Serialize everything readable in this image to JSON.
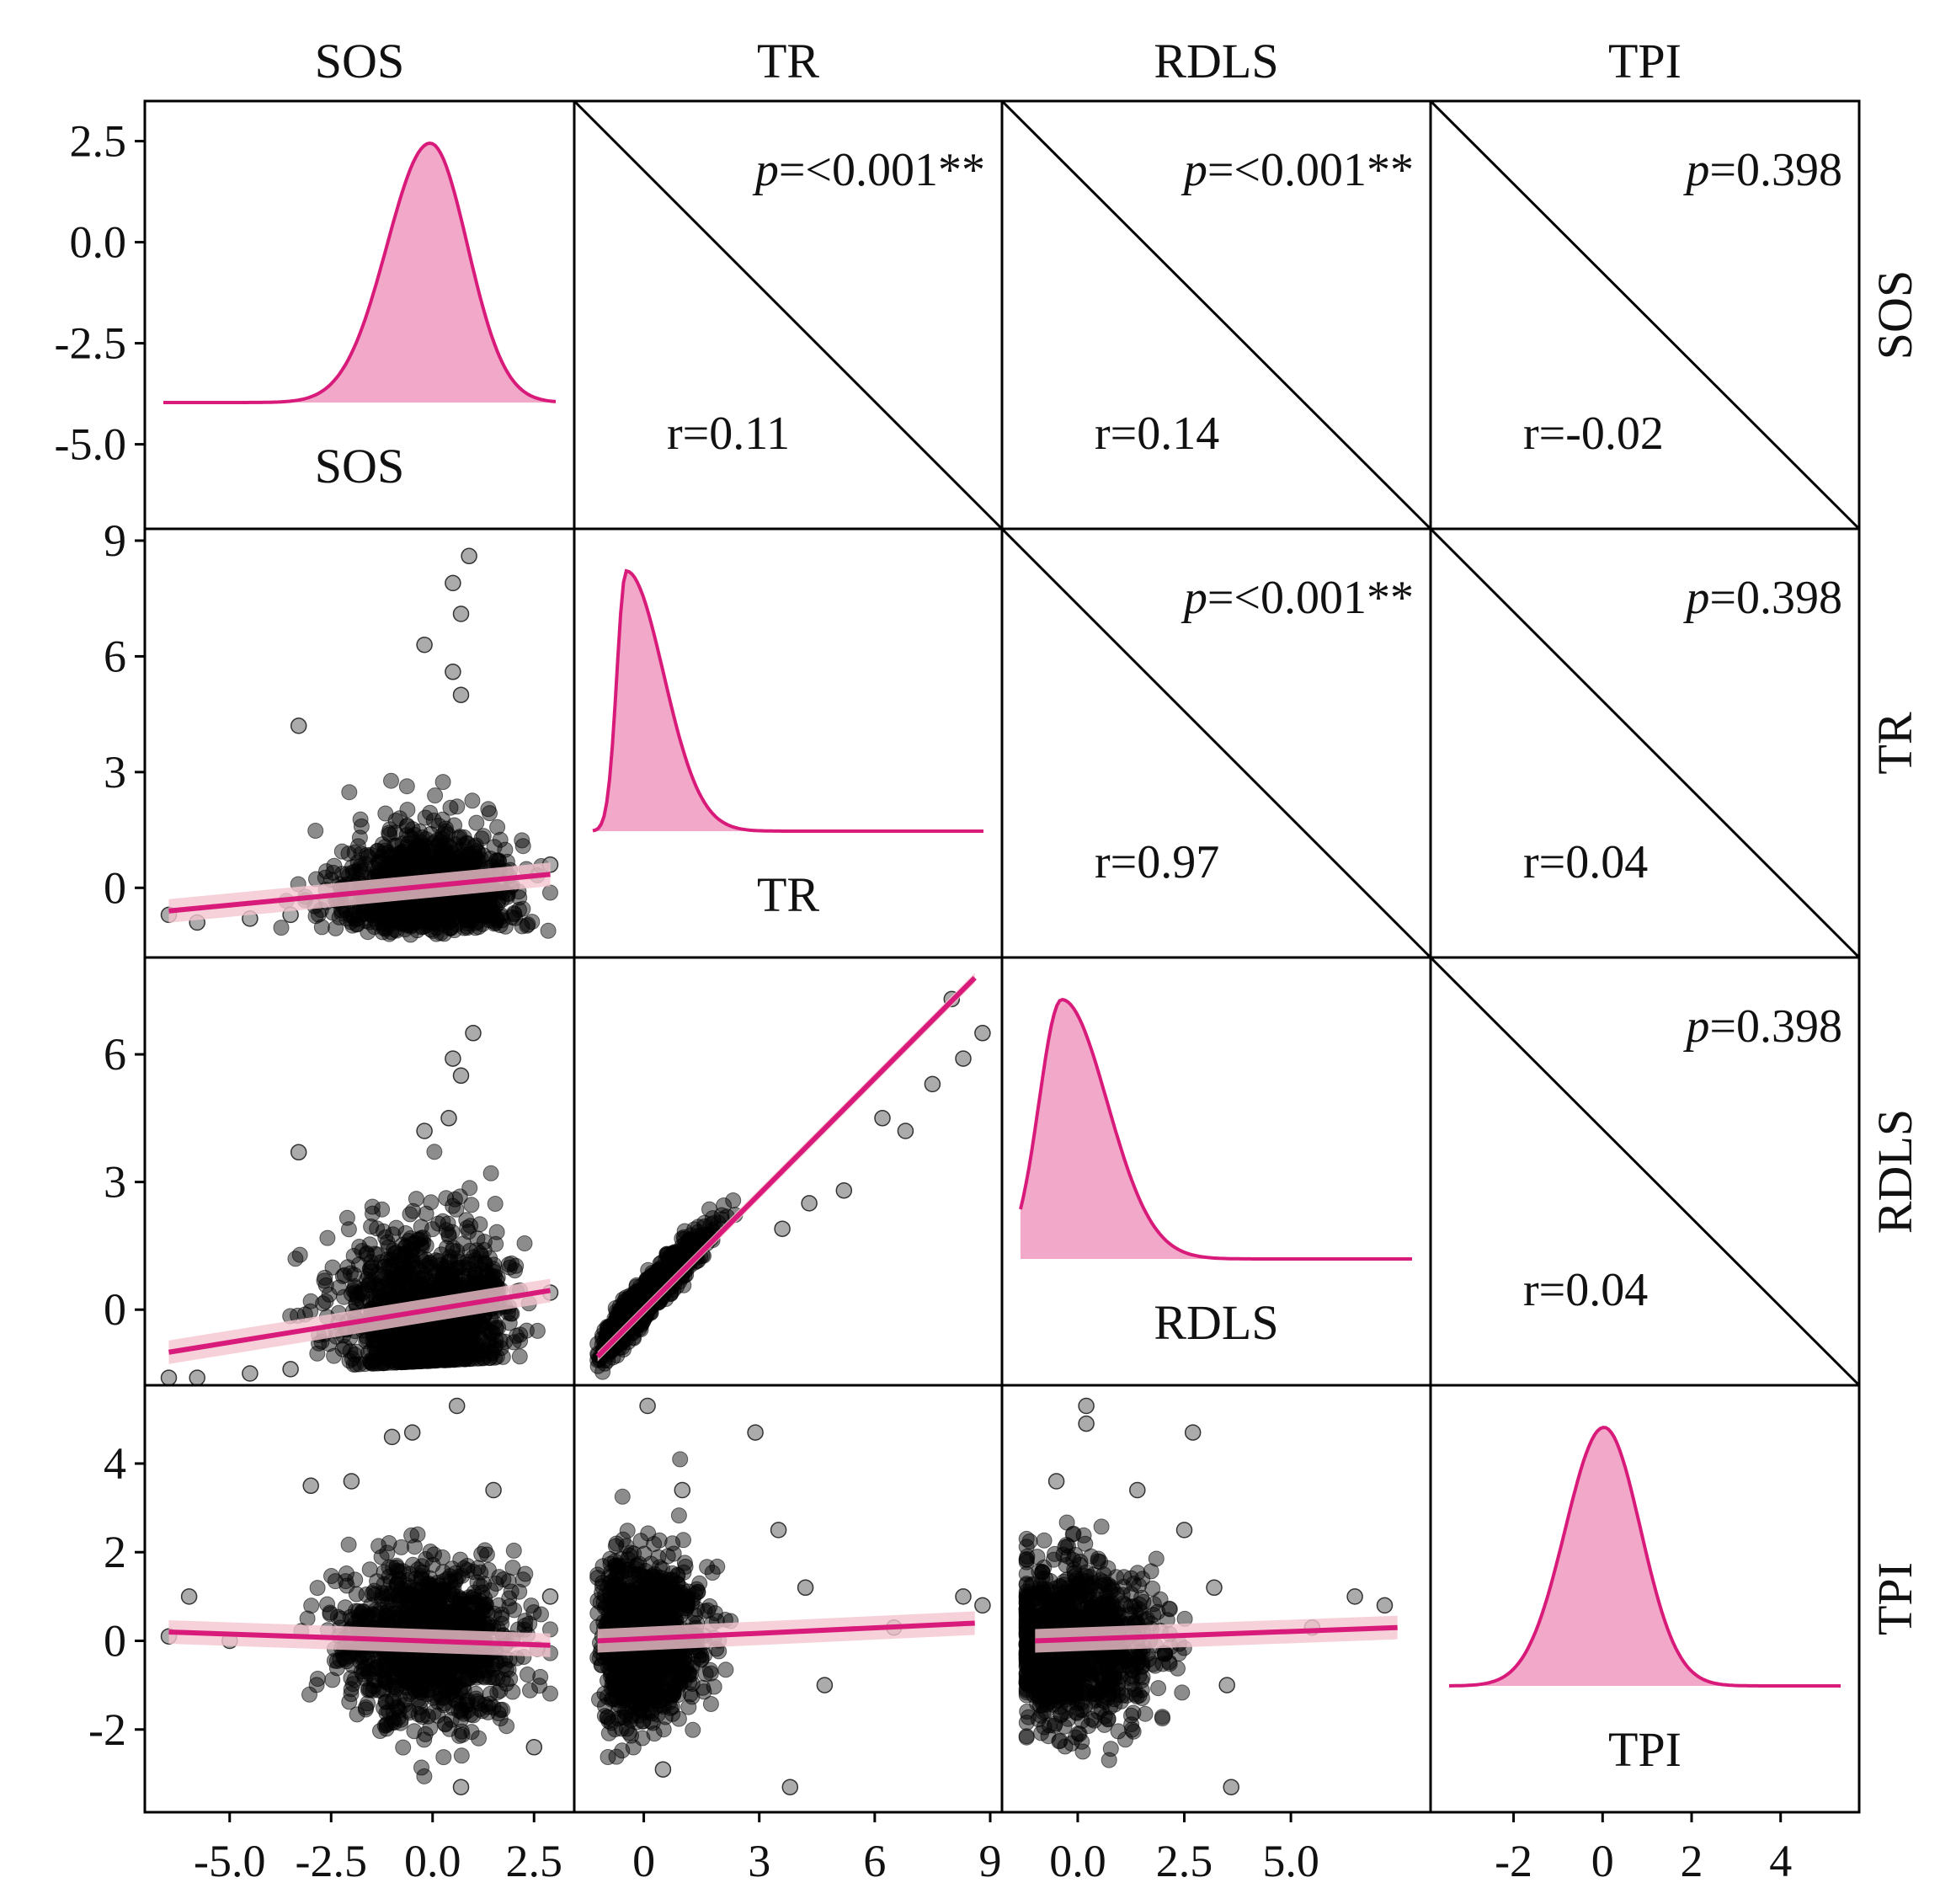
{
  "chart_data": {
    "type": "pair_plot",
    "variables": [
      "SOS",
      "TR",
      "RDLS",
      "TPI"
    ],
    "colors": {
      "accent": "#d81b7a",
      "fill": "#f2a8c8",
      "band": "#f5c6cf",
      "point": "#000000",
      "frame": "#000000"
    },
    "axis_ranges": {
      "SOS": [
        -6.8,
        3.2
      ],
      "TR": [
        -1.5,
        9.0
      ],
      "RDLS": [
        -1.5,
        8.0
      ],
      "TPI": [
        -3.6,
        5.5
      ]
    },
    "x_ticks": {
      "SOS": [
        {
          "v": -5.0,
          "label": "-5.0"
        },
        {
          "v": -2.5,
          "label": "-2.5"
        },
        {
          "v": 0.0,
          "label": "0.0"
        },
        {
          "v": 2.5,
          "label": "2.5"
        }
      ],
      "TR": [
        {
          "v": 0,
          "label": "0"
        },
        {
          "v": 3,
          "label": "3"
        },
        {
          "v": 6,
          "label": "6"
        },
        {
          "v": 9,
          "label": "9"
        }
      ],
      "RDLS": [
        {
          "v": 0.0,
          "label": "0.0"
        },
        {
          "v": 2.5,
          "label": "2.5"
        },
        {
          "v": 5.0,
          "label": "5.0"
        }
      ],
      "TPI": [
        {
          "v": -2,
          "label": "-2"
        },
        {
          "v": 0,
          "label": "0"
        },
        {
          "v": 2,
          "label": "2"
        },
        {
          "v": 4,
          "label": "4"
        }
      ]
    },
    "y_ticks": {
      "SOS": [
        {
          "v": 2.5,
          "label": "2.5"
        },
        {
          "v": 0.0,
          "label": "0.0"
        },
        {
          "v": -2.5,
          "label": "-2.5"
        },
        {
          "v": -5.0,
          "label": "-5.0"
        }
      ],
      "TR": [
        {
          "v": 9,
          "label": "9"
        },
        {
          "v": 6,
          "label": "6"
        },
        {
          "v": 3,
          "label": "3"
        },
        {
          "v": 0,
          "label": "0"
        }
      ],
      "RDLS": [
        {
          "v": 6,
          "label": "6"
        },
        {
          "v": 3,
          "label": "3"
        },
        {
          "v": 0,
          "label": "0"
        }
      ],
      "TPI": [
        {
          "v": 4,
          "label": "4"
        },
        {
          "v": 2,
          "label": "2"
        },
        {
          "v": 0,
          "label": "0"
        },
        {
          "v": -2,
          "label": "-2"
        }
      ]
    },
    "correlations": [
      {
        "row": "SOS",
        "col": "TR",
        "r": "r=0.11",
        "p_prefix": "p",
        "p_value": "=<0.001**"
      },
      {
        "row": "SOS",
        "col": "RDLS",
        "r": "r=0.14",
        "p_prefix": "p",
        "p_value": "=<0.001**"
      },
      {
        "row": "SOS",
        "col": "TPI",
        "r": "r=-0.02",
        "p_prefix": "p",
        "p_value": "=0.398"
      },
      {
        "row": "TR",
        "col": "RDLS",
        "r": "r=0.97",
        "p_prefix": "p",
        "p_value": "=<0.001**"
      },
      {
        "row": "TR",
        "col": "TPI",
        "r": "r=0.04",
        "p_prefix": "p",
        "p_value": "=0.398"
      },
      {
        "row": "RDLS",
        "col": "TPI",
        "r": "r=0.04",
        "p_prefix": "p",
        "p_value": "=0.398"
      }
    ],
    "densities": {
      "SOS": {
        "mode": 0.0,
        "sd_left": 1.1,
        "sd_right": 0.95
      },
      "TR": {
        "mode": -0.6,
        "sd_left": 0.25,
        "sd_right": 1.0
      },
      "RDLS": {
        "mode": -0.5,
        "sd_left": 0.55,
        "sd_right": 1.1
      },
      "TPI": {
        "mode": 0.0,
        "sd_left": 0.9,
        "sd_right": 0.85
      }
    },
    "regressions": [
      {
        "x": "SOS",
        "y": "TR",
        "x0": -6.5,
        "y0": -0.6,
        "x1": 2.9,
        "y1": 0.35
      },
      {
        "x": "SOS",
        "y": "RDLS",
        "x0": -6.5,
        "y0": -1.0,
        "x1": 2.9,
        "y1": 0.45
      },
      {
        "x": "TR",
        "y": "RDLS",
        "x0": -1.2,
        "y0": -1.1,
        "x1": 8.6,
        "y1": 7.8
      },
      {
        "x": "SOS",
        "y": "TPI",
        "x0": -6.5,
        "y0": 0.2,
        "x1": 2.9,
        "y1": -0.1
      },
      {
        "x": "TR",
        "y": "TPI",
        "x0": -1.2,
        "y0": 0.0,
        "x1": 8.6,
        "y1": 0.4
      },
      {
        "x": "RDLS",
        "y": "TPI",
        "x0": -1.0,
        "y0": 0.0,
        "x1": 7.5,
        "y1": 0.3
      }
    ],
    "outliers": [
      {
        "x": "SOS",
        "y": "TR",
        "points": [
          [
            0.9,
            8.6
          ],
          [
            0.5,
            7.9
          ],
          [
            0.7,
            7.1
          ],
          [
            -0.2,
            6.3
          ],
          [
            0.5,
            5.6
          ],
          [
            0.7,
            5.0
          ],
          [
            -3.3,
            4.2
          ],
          [
            -6.5,
            -0.7
          ],
          [
            -5.8,
            -0.9
          ],
          [
            -4.5,
            -0.8
          ],
          [
            -3.5,
            -0.7
          ],
          [
            2.9,
            0.6
          ]
        ]
      },
      {
        "x": "SOS",
        "y": "RDLS",
        "points": [
          [
            1.0,
            6.5
          ],
          [
            0.5,
            5.9
          ],
          [
            0.7,
            5.5
          ],
          [
            -0.2,
            4.2
          ],
          [
            0.4,
            4.5
          ],
          [
            -3.3,
            3.7
          ],
          [
            -6.5,
            -1.6
          ],
          [
            -5.8,
            -1.6
          ],
          [
            -4.5,
            -1.5
          ],
          [
            -3.5,
            -1.4
          ],
          [
            2.9,
            0.4
          ]
        ]
      },
      {
        "x": "SOS",
        "y": "TPI",
        "points": [
          [
            0.6,
            5.3
          ],
          [
            -0.5,
            4.7
          ],
          [
            -1.0,
            4.6
          ],
          [
            -3.0,
            3.5
          ],
          [
            -2.0,
            3.6
          ],
          [
            -6.0,
            1.0
          ],
          [
            -6.5,
            0.1
          ],
          [
            -5.0,
            0.0
          ],
          [
            1.5,
            3.4
          ],
          [
            2.5,
            -2.4
          ],
          [
            0.7,
            -3.3
          ],
          [
            2.9,
            1.0
          ]
        ]
      },
      {
        "x": "TR",
        "y": "RDLS",
        "points": [
          [
            8.8,
            6.5
          ],
          [
            8.3,
            5.9
          ],
          [
            7.5,
            5.3
          ],
          [
            6.2,
            4.5
          ],
          [
            6.8,
            4.2
          ],
          [
            5.2,
            2.8
          ],
          [
            4.3,
            2.5
          ],
          [
            3.6,
            1.9
          ],
          [
            8.0,
            7.3
          ]
        ]
      },
      {
        "x": "TR",
        "y": "TPI",
        "points": [
          [
            0.1,
            5.3
          ],
          [
            2.9,
            4.7
          ],
          [
            1.0,
            3.4
          ],
          [
            3.5,
            2.5
          ],
          [
            4.2,
            1.2
          ],
          [
            4.7,
            -1.0
          ],
          [
            8.3,
            1.0
          ],
          [
            8.8,
            0.8
          ],
          [
            6.5,
            0.3
          ],
          [
            3.8,
            -3.3
          ],
          [
            0.5,
            -2.9
          ]
        ]
      },
      {
        "x": "RDLS",
        "y": "TPI",
        "points": [
          [
            0.2,
            5.3
          ],
          [
            0.2,
            4.9
          ],
          [
            2.7,
            4.7
          ],
          [
            1.4,
            3.4
          ],
          [
            2.5,
            2.5
          ],
          [
            3.2,
            1.2
          ],
          [
            3.5,
            -1.0
          ],
          [
            6.5,
            1.0
          ],
          [
            7.2,
            0.8
          ],
          [
            5.5,
            0.3
          ],
          [
            3.6,
            -3.3
          ],
          [
            -0.5,
            3.6
          ]
        ]
      }
    ]
  }
}
